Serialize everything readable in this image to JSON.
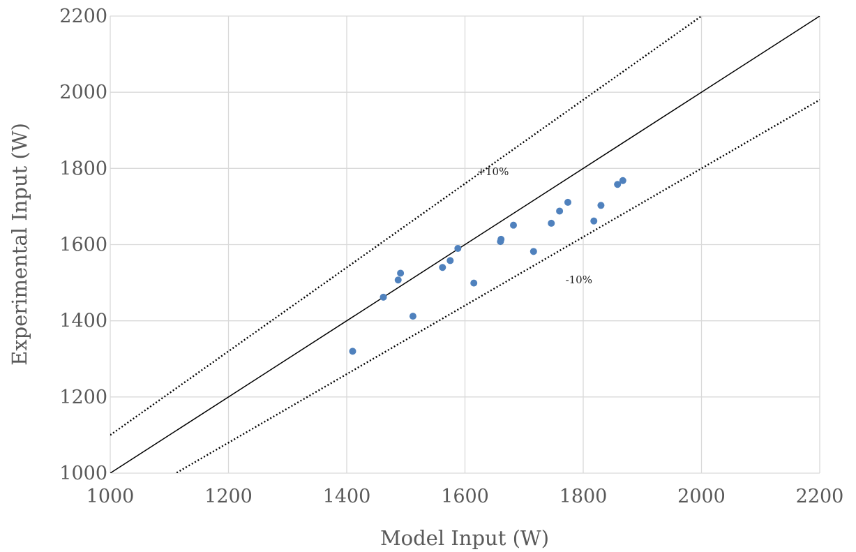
{
  "chart_data": {
    "type": "scatter",
    "xlabel": "Model Input (W)",
    "ylabel": "Experimental Input (W)",
    "xlim": [
      1000,
      2200
    ],
    "ylim": [
      1000,
      2200
    ],
    "xticks": [
      1000,
      1200,
      1400,
      1600,
      1800,
      2000,
      2200
    ],
    "yticks": [
      1000,
      1200,
      1400,
      1600,
      1800,
      2000,
      2200
    ],
    "xtick_labels": [
      "1000",
      "1200",
      "1400",
      "1600",
      "1800",
      "2000",
      "2200"
    ],
    "ytick_labels": [
      "1000",
      "1200",
      "1400",
      "1600",
      "1800",
      "2000",
      "2200"
    ],
    "grid": true,
    "point_color": "#4F81BD",
    "series": [
      {
        "points": [
          [
            1410,
            1320
          ],
          [
            1462,
            1462
          ],
          [
            1487,
            1507
          ],
          [
            1491,
            1525
          ],
          [
            1512,
            1412
          ],
          [
            1562,
            1540
          ],
          [
            1575,
            1558
          ],
          [
            1588,
            1590
          ],
          [
            1615,
            1499
          ],
          [
            1660,
            1608
          ],
          [
            1661,
            1614
          ],
          [
            1682,
            1651
          ],
          [
            1716,
            1582
          ],
          [
            1746,
            1656
          ],
          [
            1760,
            1688
          ],
          [
            1774,
            1711
          ],
          [
            1818,
            1662
          ],
          [
            1830,
            1703
          ],
          [
            1858,
            1758
          ],
          [
            1867,
            1768
          ]
        ]
      }
    ],
    "reference_lines": [
      {
        "label": "",
        "factor": 1.0,
        "style": "solid"
      },
      {
        "label": "+10%",
        "factor": 1.1,
        "style": "dotted",
        "label_at": [
          1620,
          1782
        ]
      },
      {
        "label": "-10%",
        "factor": 0.9,
        "style": "dotted",
        "label_at": [
          1770,
          1498
        ]
      }
    ]
  }
}
